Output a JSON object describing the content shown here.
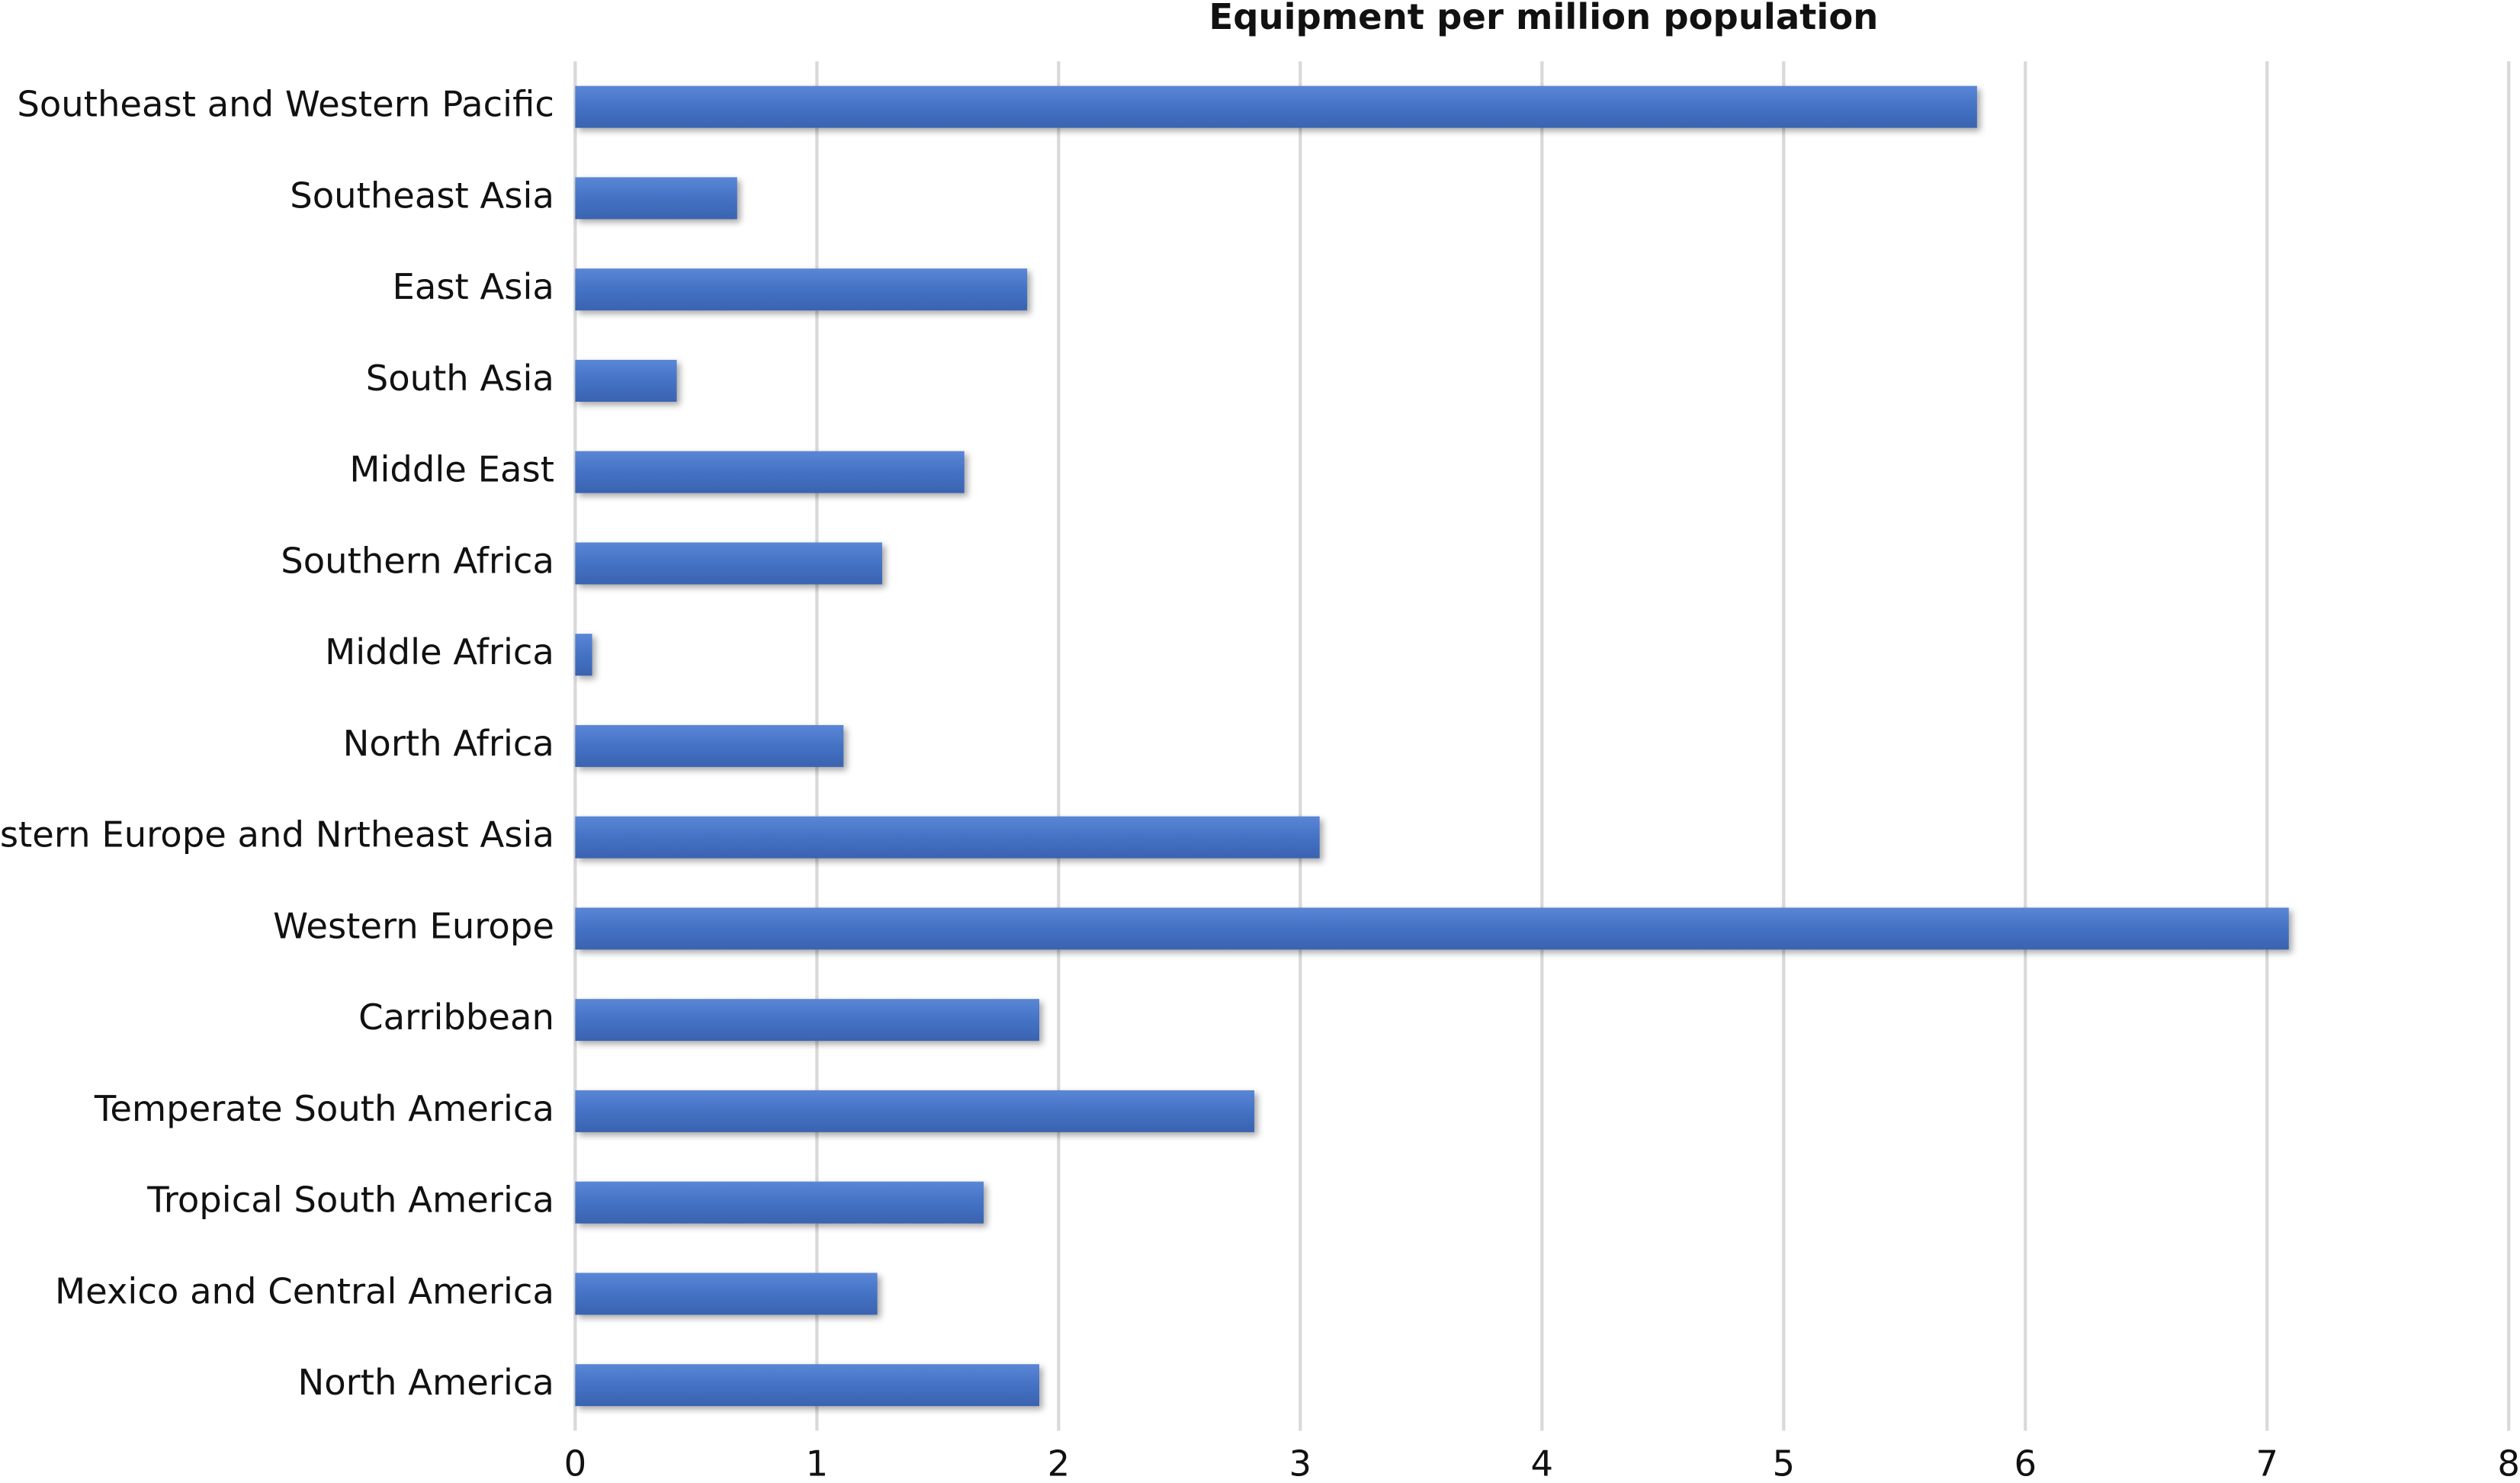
{
  "chart_data": {
    "type": "bar",
    "orientation": "horizontal",
    "title": "Equipment per million population",
    "categories": [
      "Southeast and Western Pacific",
      "Southeast Asia",
      "East Asia",
      "South Asia",
      "Middle East",
      "Southern Africa",
      "Middle Africa",
      "North Africa",
      "Eastern Europe and Nrtheast Asia",
      "Western Europe",
      "Carribbean",
      "Temperate South America",
      "Tropical South America",
      "Mexico and Central America",
      "North America"
    ],
    "values": [
      5.8,
      0.67,
      1.87,
      0.42,
      1.61,
      1.27,
      0.07,
      1.11,
      3.08,
      7.09,
      1.92,
      2.81,
      1.69,
      1.25,
      1.92
    ],
    "color": "#4472c4",
    "xlim": [
      0,
      8
    ],
    "xticks": [
      0,
      1,
      2,
      3,
      4,
      5,
      6,
      7,
      8
    ],
    "grid": true
  }
}
